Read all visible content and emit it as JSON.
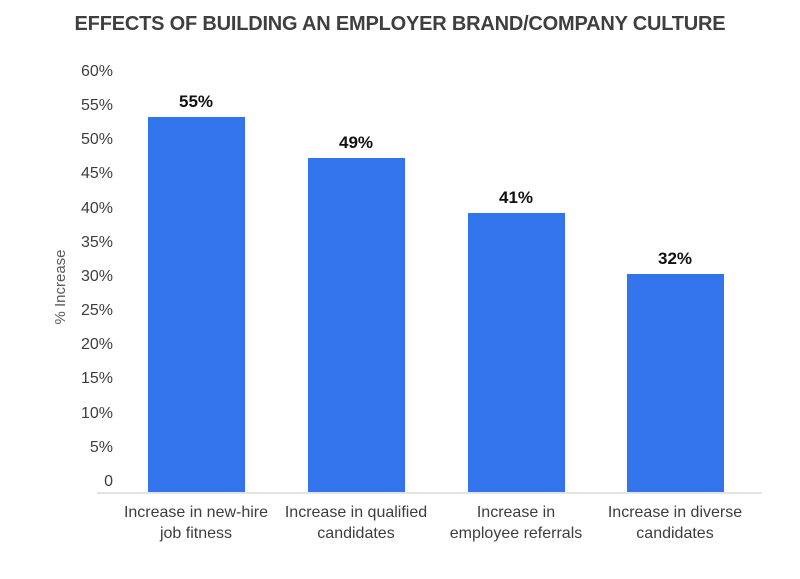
{
  "chart_data": {
    "type": "bar",
    "title": "EFFECTS OF BUILDING AN EMPLOYER BRAND/COMPANY CULTURE",
    "xlabel": "",
    "ylabel": "% Increase",
    "categories": [
      "Increase in new-hire job fitness",
      "Increase in qualified candidates",
      "Increase in employee referrals",
      "Increase in diverse candidates"
    ],
    "values": [
      55,
      49,
      41,
      32
    ],
    "value_labels": [
      "55%",
      "49%",
      "41%",
      "32%"
    ],
    "y_ticks": {
      "values": [
        60,
        55,
        50,
        45,
        40,
        35,
        30,
        25,
        20,
        15,
        10,
        5,
        0
      ],
      "labels": [
        "60%",
        "55%",
        "50%",
        "45%",
        "40%",
        "35%",
        "30%",
        "25%",
        "20%",
        "15%",
        "10%",
        "5%",
        "0"
      ]
    },
    "ylim": [
      0,
      60
    ],
    "grid": false,
    "legend": null,
    "bar_color": "#3274eb"
  },
  "colors": {
    "accent": "#3274eb",
    "title_text": "#3f3f3f",
    "tick_text": "#3d3d3d",
    "axis_label_text": "#5a5a5a",
    "data_label_text": "#111111",
    "axis_line": "#e3e3e3",
    "background": "#ffffff"
  }
}
